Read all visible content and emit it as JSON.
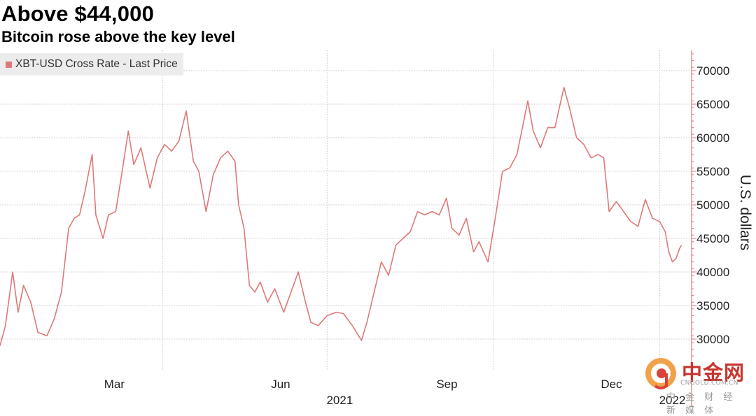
{
  "title": "Above $44,000",
  "subtitle": "Bitcoin rose above the key level",
  "legend": {
    "label": "XBT-USD Cross Rate - Last Price",
    "color": "#e07878"
  },
  "watermark": {
    "name": "中金网",
    "site": "CNGOLD.COM.CN",
    "tagline": "中 金 财 经 新 媒 体"
  },
  "chart_data": {
    "type": "line",
    "title": "Above $44,000",
    "subtitle": "Bitcoin rose above the key level",
    "ylabel": "U.S. dollars",
    "ylim": [
      26500,
      73000
    ],
    "yticks": [
      30000,
      35000,
      40000,
      45000,
      50000,
      55000,
      60000,
      65000,
      70000
    ],
    "ytick_labels": [
      "30000",
      "35000",
      "40000",
      "45000",
      "50000",
      "55000",
      "60000",
      "65000",
      "70000"
    ],
    "xlim": [
      "2021-01-01",
      "2022-01-07"
    ],
    "x_tick_labels": [
      {
        "label": "Mar",
        "date": "2021-03-01"
      },
      {
        "label": "Jun",
        "date": "2021-06-01"
      },
      {
        "label": "Sep",
        "date": "2021-09-01"
      },
      {
        "label": "Dec",
        "date": "2021-12-01"
      }
    ],
    "x_year_labels": [
      {
        "label": "2021",
        "date": "2021-07-01"
      },
      {
        "label": "2022",
        "date": "2022-01-01"
      }
    ],
    "grid": true,
    "series": [
      {
        "name": "XBT-USD Cross Rate - Last Price",
        "color": "#e07878",
        "points": [
          [
            "2021-01-01",
            29000
          ],
          [
            "2021-01-04",
            32000
          ],
          [
            "2021-01-08",
            40000
          ],
          [
            "2021-01-11",
            34000
          ],
          [
            "2021-01-14",
            38000
          ],
          [
            "2021-01-18",
            35500
          ],
          [
            "2021-01-22",
            31000
          ],
          [
            "2021-01-27",
            30500
          ],
          [
            "2021-01-31",
            33000
          ],
          [
            "2021-02-04",
            37000
          ],
          [
            "2021-02-08",
            46500
          ],
          [
            "2021-02-11",
            48000
          ],
          [
            "2021-02-14",
            48500
          ],
          [
            "2021-02-17",
            52000
          ],
          [
            "2021-02-21",
            57500
          ],
          [
            "2021-02-23",
            48500
          ],
          [
            "2021-02-27",
            45000
          ],
          [
            "2021-03-02",
            48500
          ],
          [
            "2021-03-06",
            49000
          ],
          [
            "2021-03-09",
            54000
          ],
          [
            "2021-03-13",
            61000
          ],
          [
            "2021-03-16",
            56000
          ],
          [
            "2021-03-20",
            58500
          ],
          [
            "2021-03-25",
            52500
          ],
          [
            "2021-03-29",
            57000
          ],
          [
            "2021-04-02",
            59000
          ],
          [
            "2021-04-06",
            58000
          ],
          [
            "2021-04-10",
            59500
          ],
          [
            "2021-04-14",
            64000
          ],
          [
            "2021-04-18",
            56500
          ],
          [
            "2021-04-21",
            55000
          ],
          [
            "2021-04-25",
            49000
          ],
          [
            "2021-04-29",
            54500
          ],
          [
            "2021-05-03",
            57000
          ],
          [
            "2021-05-07",
            58000
          ],
          [
            "2021-05-11",
            56500
          ],
          [
            "2021-05-13",
            50000
          ],
          [
            "2021-05-16",
            46500
          ],
          [
            "2021-05-19",
            38000
          ],
          [
            "2021-05-22",
            37000
          ],
          [
            "2021-05-25",
            38500
          ],
          [
            "2021-05-29",
            35500
          ],
          [
            "2021-06-02",
            37500
          ],
          [
            "2021-06-07",
            34000
          ],
          [
            "2021-06-11",
            37000
          ],
          [
            "2021-06-15",
            40000
          ],
          [
            "2021-06-19",
            35500
          ],
          [
            "2021-06-22",
            32500
          ],
          [
            "2021-06-26",
            32000
          ],
          [
            "2021-07-01",
            33500
          ],
          [
            "2021-07-06",
            34000
          ],
          [
            "2021-07-10",
            33800
          ],
          [
            "2021-07-15",
            32000
          ],
          [
            "2021-07-20",
            29800
          ],
          [
            "2021-07-23",
            32500
          ],
          [
            "2021-07-27",
            37000
          ],
          [
            "2021-07-31",
            41500
          ],
          [
            "2021-08-04",
            39500
          ],
          [
            "2021-08-08",
            44000
          ],
          [
            "2021-08-12",
            45000
          ],
          [
            "2021-08-16",
            46000
          ],
          [
            "2021-08-20",
            49000
          ],
          [
            "2021-08-24",
            48500
          ],
          [
            "2021-08-28",
            49000
          ],
          [
            "2021-09-01",
            48500
          ],
          [
            "2021-09-05",
            51000
          ],
          [
            "2021-09-08",
            46500
          ],
          [
            "2021-09-12",
            45500
          ],
          [
            "2021-09-16",
            48000
          ],
          [
            "2021-09-20",
            43000
          ],
          [
            "2021-09-23",
            44500
          ],
          [
            "2021-09-28",
            41500
          ],
          [
            "2021-10-02",
            48000
          ],
          [
            "2021-10-06",
            55000
          ],
          [
            "2021-10-10",
            55500
          ],
          [
            "2021-10-14",
            57500
          ],
          [
            "2021-10-17",
            61500
          ],
          [
            "2021-10-20",
            65500
          ],
          [
            "2021-10-23",
            61000
          ],
          [
            "2021-10-27",
            58500
          ],
          [
            "2021-10-31",
            61500
          ],
          [
            "2021-11-04",
            61500
          ],
          [
            "2021-11-09",
            67500
          ],
          [
            "2021-11-12",
            64500
          ],
          [
            "2021-11-16",
            60000
          ],
          [
            "2021-11-20",
            59000
          ],
          [
            "2021-11-24",
            57000
          ],
          [
            "2021-11-28",
            57500
          ],
          [
            "2021-12-01",
            57000
          ],
          [
            "2021-12-04",
            49000
          ],
          [
            "2021-12-08",
            50500
          ],
          [
            "2021-12-12",
            49000
          ],
          [
            "2021-12-16",
            47500
          ],
          [
            "2021-12-20",
            46800
          ],
          [
            "2021-12-24",
            50800
          ],
          [
            "2021-12-28",
            48000
          ],
          [
            "2022-01-01",
            47500
          ],
          [
            "2022-01-04",
            46000
          ],
          [
            "2022-01-06",
            43000
          ],
          [
            "2022-01-08",
            41500
          ],
          [
            "2022-01-10",
            42000
          ],
          [
            "2022-01-12",
            43500
          ],
          [
            "2022-01-13",
            44000
          ]
        ]
      }
    ]
  }
}
